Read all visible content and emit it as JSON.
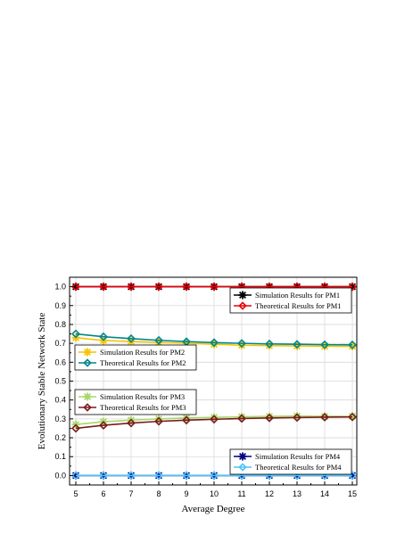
{
  "chart_data": {
    "type": "line",
    "xlabel": "Average Degree",
    "ylabel": "Evolutionary Stable Network State",
    "x": [
      5,
      6,
      7,
      8,
      9,
      10,
      11,
      12,
      13,
      14,
      15
    ],
    "xlim": [
      5,
      15
    ],
    "ylim": [
      -0.05,
      1.05
    ],
    "xticks": [
      "5",
      "6",
      "7",
      "8",
      "9",
      "10",
      "11",
      "12",
      "13",
      "14",
      "15"
    ],
    "yticks": [
      "0.0",
      "0.1",
      "0.2",
      "0.3",
      "0.4",
      "0.5",
      "0.6",
      "0.7",
      "0.8",
      "0.9",
      "1.0"
    ],
    "grid": true,
    "series": [
      {
        "name": "Simulation Results for PM1",
        "marker": "asterisk",
        "color": "#000000",
        "values": [
          1.0,
          1.0,
          1.0,
          1.0,
          1.0,
          1.0,
          1.0,
          1.0,
          1.0,
          1.0,
          1.0
        ]
      },
      {
        "name": "Theoretical Results for PM1",
        "marker": "diamond",
        "color": "#e8000b",
        "values": [
          1.0,
          1.0,
          1.0,
          1.0,
          1.0,
          1.0,
          1.0,
          1.0,
          1.0,
          1.0,
          1.0
        ]
      },
      {
        "name": "Simulation Results for PM2",
        "marker": "asterisk",
        "color": "#f5c400",
        "values": [
          0.73,
          0.715,
          0.71,
          0.705,
          0.7,
          0.695,
          0.69,
          0.688,
          0.686,
          0.685,
          0.684
        ]
      },
      {
        "name": "Theoretical Results for PM2",
        "marker": "diamond",
        "color": "#00868b",
        "values": [
          0.75,
          0.735,
          0.725,
          0.716,
          0.709,
          0.704,
          0.7,
          0.697,
          0.695,
          0.693,
          0.692
        ]
      },
      {
        "name": "Simulation Results for PM3",
        "marker": "asterisk",
        "color": "#a6d96a",
        "values": [
          0.27,
          0.285,
          0.293,
          0.3,
          0.305,
          0.308,
          0.311,
          0.313,
          0.315,
          0.313,
          0.314
        ]
      },
      {
        "name": "Theoretical Results for PM3",
        "marker": "diamond",
        "color": "#7b1a1a",
        "values": [
          0.25,
          0.266,
          0.278,
          0.287,
          0.293,
          0.298,
          0.302,
          0.305,
          0.307,
          0.309,
          0.31
        ]
      },
      {
        "name": "Simulation Results for PM4",
        "marker": "asterisk",
        "color": "#000080",
        "values": [
          0.0,
          0.0,
          0.0,
          0.0,
          0.0,
          0.0,
          0.0,
          0.0,
          0.0,
          0.0,
          0.0
        ]
      },
      {
        "name": "Theoretical Results for PM4",
        "marker": "diamond",
        "color": "#4fc3f7",
        "values": [
          0.0,
          0.0,
          0.0,
          0.0,
          0.0,
          0.0,
          0.0,
          0.0,
          0.0,
          0.0,
          0.0
        ]
      }
    ],
    "legends": [
      {
        "placement": "upper-right",
        "series": [
          0,
          1
        ]
      },
      {
        "placement": "upper-left",
        "series": [
          2,
          3
        ]
      },
      {
        "placement": "middle-left",
        "series": [
          4,
          5
        ]
      },
      {
        "placement": "lower-right",
        "series": [
          6,
          7
        ]
      }
    ]
  }
}
